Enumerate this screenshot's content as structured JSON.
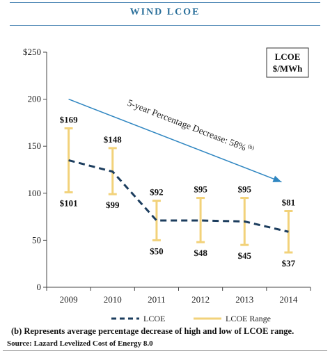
{
  "header": {
    "title": "WIND LCOE"
  },
  "chart_data": {
    "type": "line",
    "title": "WIND LCOE",
    "categories": [
      "2009",
      "2010",
      "2011",
      "2012",
      "2013",
      "2014"
    ],
    "yticks": [
      "$250",
      "200",
      "150",
      "100",
      "50",
      "0"
    ],
    "ylim": [
      0,
      250
    ],
    "unit_box": {
      "line1": "LCOE",
      "line2": "$/MWh"
    },
    "series": [
      {
        "name": "LCOE",
        "values": [
          135,
          123,
          71,
          71,
          70,
          59
        ],
        "style": "dashed",
        "color": "#1c3d5e"
      },
      {
        "name": "LCOE Range",
        "low": [
          101,
          99,
          50,
          48,
          45,
          37
        ],
        "high": [
          169,
          148,
          92,
          95,
          95,
          81
        ],
        "color": "#f2d27a"
      }
    ],
    "high_labels": [
      "$169",
      "$148",
      "$92",
      "$95",
      "$95",
      "$81"
    ],
    "low_labels": [
      "$101",
      "$99",
      "$50",
      "$48",
      "$45",
      "$37"
    ],
    "annotation": {
      "text": "5-year Percentage Decrease: 58%",
      "superscript": "(b)",
      "color": "#2f86c1"
    },
    "grid": false
  },
  "footer": {
    "note": "(b) Represents average percentage decrease of high and low of LCOE range.",
    "source": "Source: Lazard Levelized Cost of Energy 8.0"
  }
}
